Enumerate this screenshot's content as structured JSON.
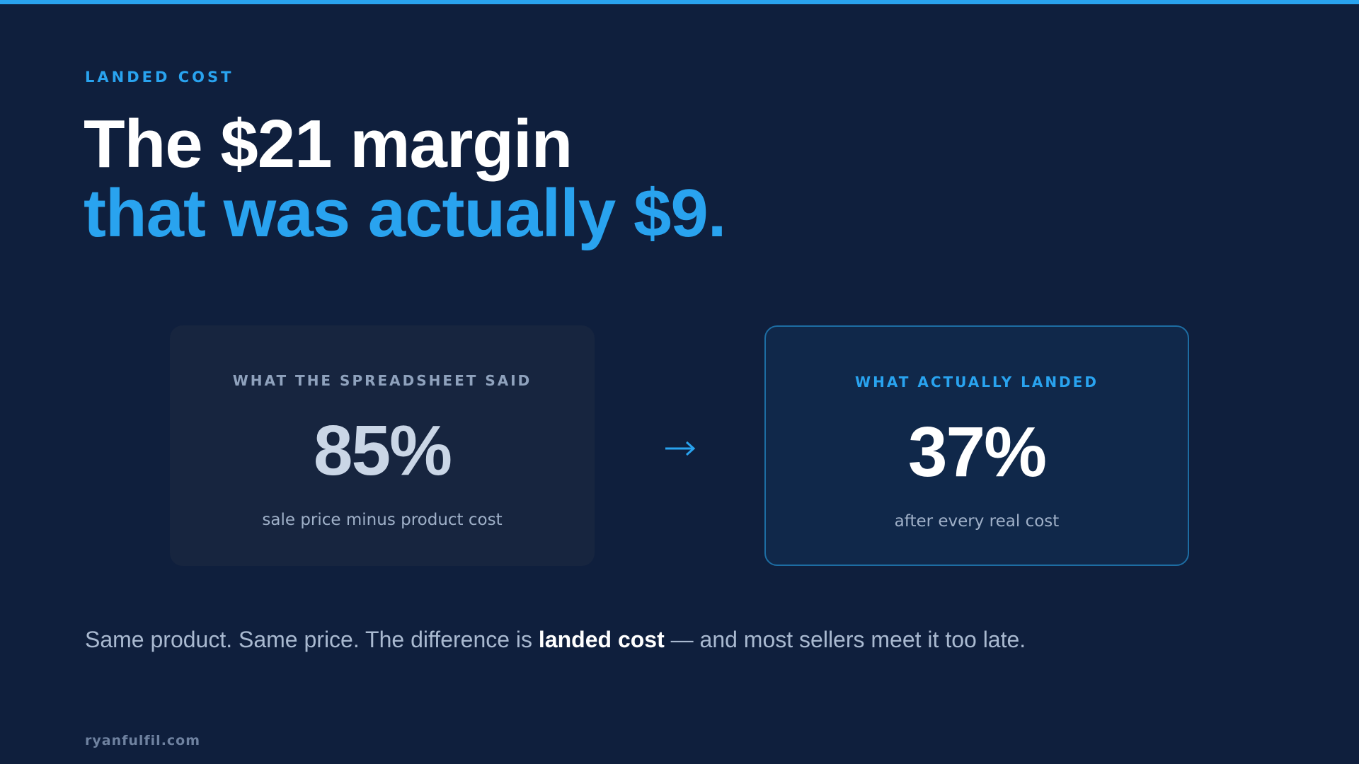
{
  "eyebrow": "LANDED COST",
  "title": {
    "line1": "The $21 margin",
    "line2": "that was actually $9."
  },
  "cards": [
    {
      "label": "WHAT THE SPREADSHEET SAID",
      "value": "85%",
      "caption": "sale price minus product cost"
    },
    {
      "label": "WHAT ACTUALLY LANDED",
      "value": "37%",
      "caption": "after every real cost"
    }
  ],
  "summary": {
    "before": "Same product. Same price. The difference is ",
    "emphasis": "landed cost",
    "after": " — and most sellers meet it too late."
  },
  "footer": "ryanfulfil.com"
}
